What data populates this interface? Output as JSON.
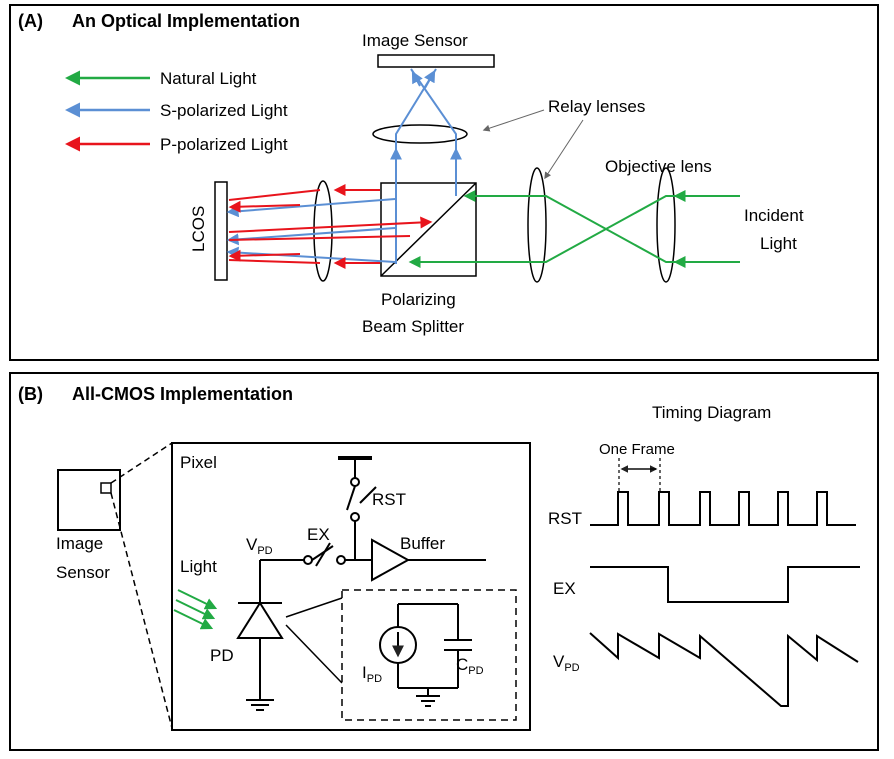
{
  "panel_a": {
    "label": "(A)",
    "title": "An Optical Implementation",
    "image_sensor": "Image Sensor",
    "relay_lenses": "Relay lenses",
    "objective_lens": "Objective lens",
    "incident_light_1": "Incident",
    "incident_light_2": "Light",
    "lcos": "LCOS",
    "pbs_1": "Polarizing",
    "pbs_2": "Beam Splitter",
    "legend": [
      {
        "label": "Natural Light",
        "color": "#22aa44"
      },
      {
        "label": "S-polarized Light",
        "color": "#5b8fd4"
      },
      {
        "label": "P-polarized Light",
        "color": "#e8141c"
      }
    ]
  },
  "panel_b": {
    "label": "(B)",
    "title": "All-CMOS Implementation",
    "image_sensor_1": "Image",
    "image_sensor_2": "Sensor",
    "pixel": "Pixel",
    "rst": "RST",
    "ex": "EX",
    "buffer": "Buffer",
    "v": "V",
    "pd_sub": "PD",
    "light": "Light",
    "pd": "PD",
    "i": "I",
    "c": "C",
    "timing_title": "Timing Diagram",
    "one_frame": "One Frame",
    "t_rst": "RST",
    "t_ex": "EX",
    "t_v": "V"
  }
}
